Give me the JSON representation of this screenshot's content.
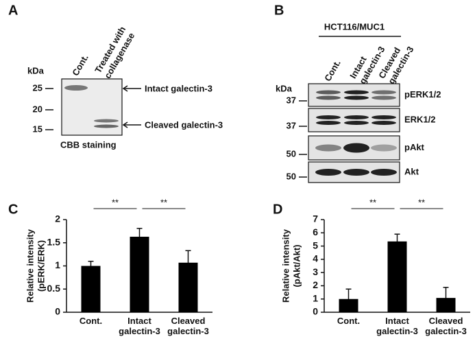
{
  "panels": {
    "a": {
      "label": "A",
      "unit": "kDa",
      "lanes": [
        [
          "Cont."
        ],
        [
          "Treated with",
          "collagenase"
        ]
      ],
      "markers": [
        25,
        20,
        15
      ],
      "bands": [
        "Intact galectin-3",
        "Cleaved galectin-3"
      ],
      "stain": "CBB staining"
    },
    "b": {
      "label": "B",
      "cell_line": "HCT116/MUC1",
      "unit": "kDa",
      "lanes": [
        [
          "Cont."
        ],
        [
          "Intact",
          "galectin-3"
        ],
        [
          "Cleaved",
          "galectin-3"
        ]
      ],
      "blots": [
        {
          "name": "pERK1/2",
          "marker": 37
        },
        {
          "name": "ERK1/2",
          "marker": 37
        },
        {
          "name": "pAkt",
          "marker": 50
        },
        {
          "name": "Akt",
          "marker": 50
        }
      ]
    }
  },
  "chart_data": [
    {
      "type": "bar",
      "label": "C",
      "ylabel": [
        "Relative intensity",
        "(pERK/ERK)"
      ],
      "categories": [
        "Cont.",
        "Intact galectin-3",
        "Cleaved galectin-3"
      ],
      "values": [
        1.0,
        1.63,
        1.07
      ],
      "errors": [
        0.1,
        0.18,
        0.26
      ],
      "color": "#000000",
      "ylim": [
        0,
        2
      ],
      "yticks": [
        0,
        0.5,
        1,
        1.5,
        2
      ],
      "annotations": [
        "**",
        "**"
      ]
    },
    {
      "type": "bar",
      "label": "D",
      "ylabel": [
        "Relative intensity",
        "(pAkt/Akt)"
      ],
      "categories": [
        "Cont.",
        "Intact galectin-3",
        "Cleaved galectin-3"
      ],
      "values": [
        1.0,
        5.35,
        1.08
      ],
      "errors": [
        0.75,
        0.55,
        0.8
      ],
      "color": "#000000",
      "ylim": [
        0,
        7
      ],
      "yticks": [
        0,
        1,
        2,
        3,
        4,
        5,
        6,
        7
      ],
      "annotations": [
        "**",
        "**"
      ]
    }
  ]
}
